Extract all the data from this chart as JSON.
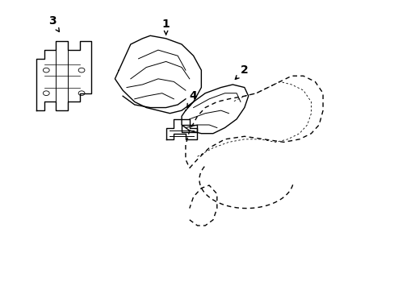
{
  "background_color": "#ffffff",
  "line_color": "#000000",
  "line_width": 1.0,
  "label_fontsize": 10
}
